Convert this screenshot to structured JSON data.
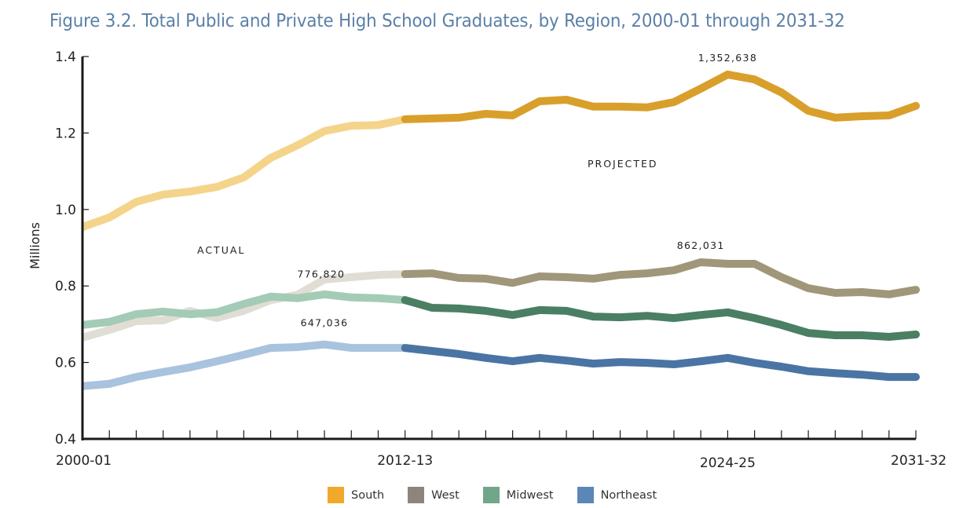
{
  "chart_data": {
    "type": "line",
    "title": "Figure 3.2. Total Public and Private High School Graduates, by Region, 2000-01 through 2031-32",
    "xlabel": "",
    "ylabel": "Millions",
    "ylim": [
      0.4,
      1.4
    ],
    "yticks": [
      "0.4",
      "0.6",
      "0.8",
      "1.0",
      "1.2",
      "1.4"
    ],
    "ytick_values": [
      0.4,
      0.6,
      0.8,
      1.0,
      1.2,
      1.4
    ],
    "x_tick_labels": [
      {
        "index": 0,
        "label": "2000-01"
      },
      {
        "index": 12,
        "label": "2012-13"
      },
      {
        "index": 24,
        "label": "2024-25"
      },
      {
        "index": 31,
        "label": "2031-32"
      }
    ],
    "x_count": 32,
    "projection_start_index": 12,
    "grid": false,
    "legend_position": "bottom",
    "segment_labels": {
      "actual": "ACTUAL",
      "projected": "PROJECTED"
    },
    "series": [
      {
        "name": "South",
        "color_actual": "#f4d48a",
        "color_projected": "#d99f2b",
        "legend_color": "#f0a92a",
        "values": [
          0.954,
          0.979,
          1.02,
          1.039,
          1.047,
          1.059,
          1.084,
          1.135,
          1.168,
          1.205,
          1.219,
          1.221,
          1.236,
          1.238,
          1.24,
          1.25,
          1.246,
          1.283,
          1.287,
          1.269,
          1.269,
          1.267,
          1.281,
          1.316,
          1.353,
          1.34,
          1.306,
          1.258,
          1.24,
          1.244,
          1.246,
          1.271
        ]
      },
      {
        "name": "West",
        "color_actual": "#e0ddd5",
        "color_projected": "#a09679",
        "legend_color": "#8d857b",
        "values": [
          0.665,
          0.685,
          0.708,
          0.71,
          0.735,
          0.716,
          0.735,
          0.763,
          0.777,
          0.817,
          0.823,
          0.829,
          0.831,
          0.833,
          0.821,
          0.819,
          0.808,
          0.825,
          0.823,
          0.819,
          0.829,
          0.833,
          0.841,
          0.862,
          0.858,
          0.858,
          0.823,
          0.794,
          0.782,
          0.784,
          0.778,
          0.79
        ]
      },
      {
        "name": "Midwest",
        "color_actual": "#a4cbb5",
        "color_projected": "#4a7f63",
        "legend_color": "#70a68a",
        "values": [
          0.698,
          0.706,
          0.726,
          0.733,
          0.726,
          0.731,
          0.753,
          0.772,
          0.768,
          0.778,
          0.77,
          0.768,
          0.763,
          0.743,
          0.741,
          0.735,
          0.724,
          0.737,
          0.735,
          0.72,
          0.718,
          0.722,
          0.716,
          0.724,
          0.731,
          0.716,
          0.698,
          0.677,
          0.671,
          0.671,
          0.667,
          0.673
        ]
      },
      {
        "name": "Northeast",
        "color_actual": "#a9c2de",
        "color_projected": "#4a74a3",
        "legend_color": "#5b87b6",
        "values": [
          0.538,
          0.544,
          0.562,
          0.575,
          0.587,
          0.603,
          0.62,
          0.638,
          0.64,
          0.647,
          0.638,
          0.638,
          0.638,
          0.63,
          0.622,
          0.612,
          0.603,
          0.612,
          0.605,
          0.597,
          0.601,
          0.599,
          0.595,
          0.603,
          0.612,
          0.599,
          0.589,
          0.577,
          0.572,
          0.568,
          0.562,
          0.562
        ]
      }
    ],
    "annotations": [
      {
        "series": "South",
        "index": 24,
        "text": "1,352,638"
      },
      {
        "series": "West",
        "index": 23,
        "text": "862,031"
      },
      {
        "series": "West",
        "index": 8,
        "text": "776,820"
      },
      {
        "series": "Northeast",
        "index": 9,
        "text": "647,036"
      }
    ]
  }
}
